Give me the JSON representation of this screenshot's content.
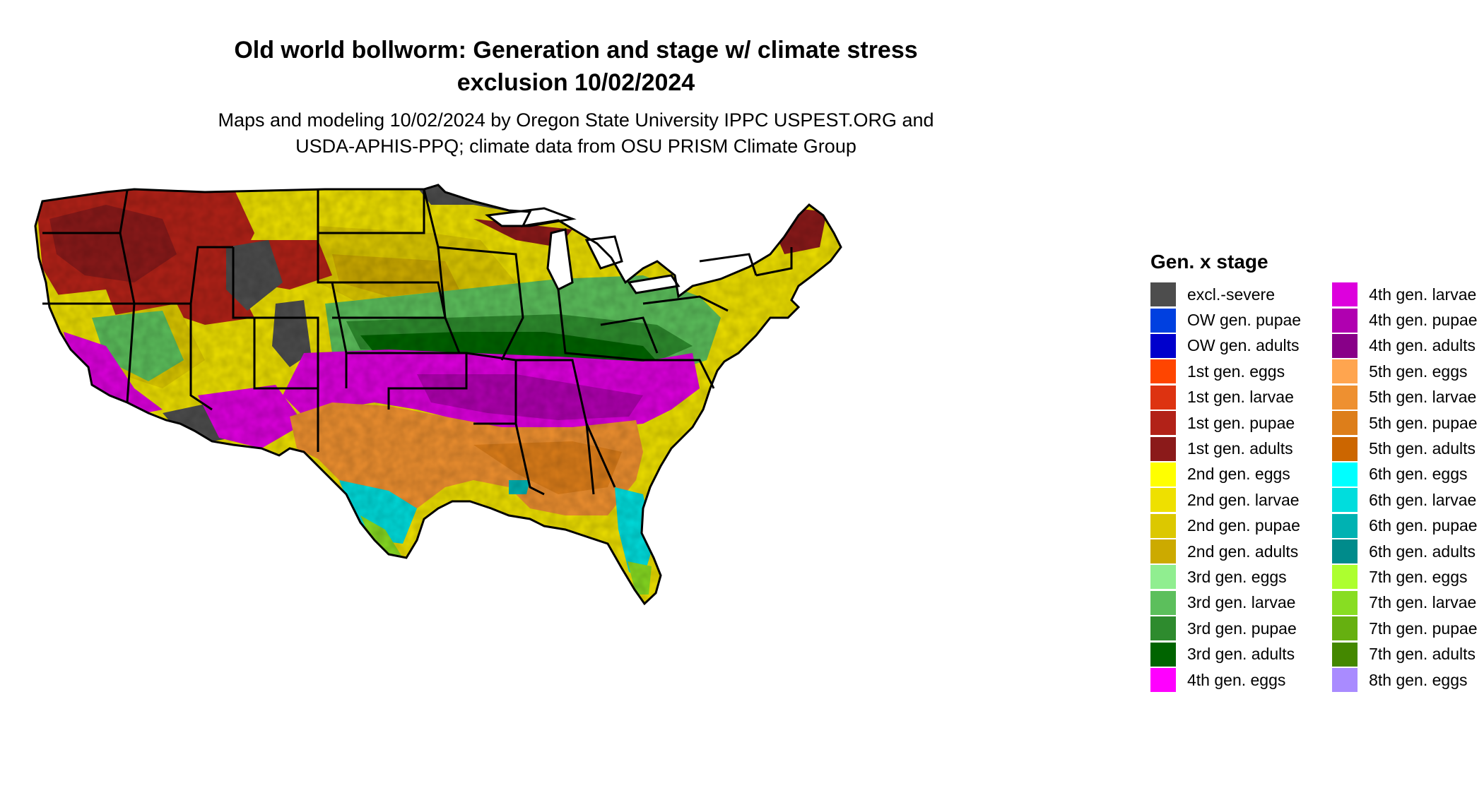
{
  "title_line1": "Old world bollworm: Generation and stage w/ climate stress",
  "title_line2": "exclusion 10/02/2024",
  "subtitle_line1": "Maps and modeling 10/02/2024 by Oregon State University IPPC USPEST.ORG and",
  "subtitle_line2": "USDA-APHIS-PPQ; climate data from OSU PRISM Climate Group",
  "legend": {
    "title": "Gen. x stage",
    "col1": [
      {
        "label": "excl.-severe",
        "color": "#4d4d4d"
      },
      {
        "label": "OW gen. pupae",
        "color": "#0040e0"
      },
      {
        "label": "OW gen. adults",
        "color": "#0000cc"
      },
      {
        "label": "1st gen. eggs",
        "color": "#ff4500"
      },
      {
        "label": "1st gen. larvae",
        "color": "#dd3311"
      },
      {
        "label": "1st gen. pupae",
        "color": "#b22218"
      },
      {
        "label": "1st gen. adults",
        "color": "#8b1a1a"
      },
      {
        "label": "2nd gen. eggs",
        "color": "#ffff00"
      },
      {
        "label": "2nd gen. larvae",
        "color": "#eee000"
      },
      {
        "label": "2nd gen. pupae",
        "color": "#dcc800"
      },
      {
        "label": "2nd gen. adults",
        "color": "#ccaa00"
      },
      {
        "label": "3rd gen. eggs",
        "color": "#90ee90"
      },
      {
        "label": "3rd gen. larvae",
        "color": "#5cbf5c"
      },
      {
        "label": "3rd gen. pupae",
        "color": "#2e8b2e"
      },
      {
        "label": "3rd gen. adults",
        "color": "#006400"
      },
      {
        "label": "4th gen. eggs",
        "color": "#ff00ff"
      }
    ],
    "col2": [
      {
        "label": "4th gen. larvae",
        "color": "#dd00dd"
      },
      {
        "label": "4th gen. pupae",
        "color": "#b000b0"
      },
      {
        "label": "4th gen. adults",
        "color": "#880088"
      },
      {
        "label": "5th gen. eggs",
        "color": "#ffa54f"
      },
      {
        "label": "5th gen. larvae",
        "color": "#ee9030"
      },
      {
        "label": "5th gen. pupae",
        "color": "#dd7e1a"
      },
      {
        "label": "5th gen. adults",
        "color": "#cc6600"
      },
      {
        "label": "6th gen. eggs",
        "color": "#00ffff"
      },
      {
        "label": "6th gen. larvae",
        "color": "#00dddd"
      },
      {
        "label": "6th gen. pupae",
        "color": "#00b2b2"
      },
      {
        "label": "6th gen. adults",
        "color": "#008b8b"
      },
      {
        "label": "7th gen. eggs",
        "color": "#adff2f"
      },
      {
        "label": "7th gen. larvae",
        "color": "#88dd22"
      },
      {
        "label": "7th gen. pupae",
        "color": "#66b010"
      },
      {
        "label": "7th gen. adults",
        "color": "#448800"
      },
      {
        "label": "8th gen. eggs",
        "color": "#a98bff"
      }
    ]
  }
}
